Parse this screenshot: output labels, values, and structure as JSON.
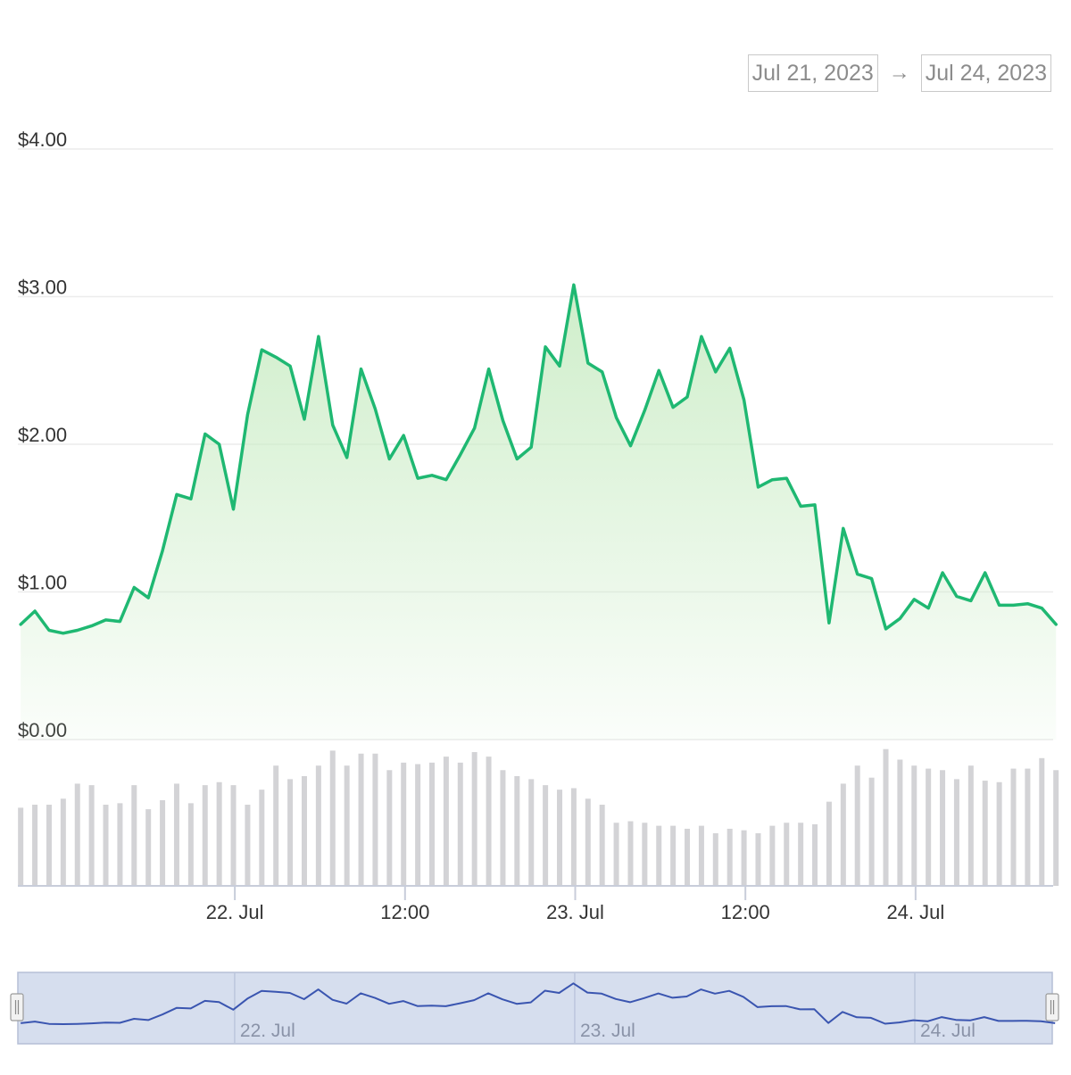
{
  "date_range": {
    "from": "Jul 21, 2023",
    "arrow": "→",
    "to": "Jul 24, 2023"
  },
  "colors": {
    "line": "#1fb872",
    "area_top": "#c9ecc4",
    "volume": "#d3d3d6",
    "grid": "#ececec",
    "navigator_fill": "#d6deee",
    "navigator_line": "#3a55b0"
  },
  "chart_data": {
    "type": "line",
    "title": "",
    "xlabel": "",
    "ylabel": "",
    "ylim": [
      0,
      4
    ],
    "y_ticks": [
      "$0.00",
      "$1.00",
      "$2.00",
      "$3.00",
      "$4.00"
    ],
    "x_ticks": [
      {
        "label": "22. Jul",
        "hours": 24
      },
      {
        "label": "12:00",
        "hours": 36
      },
      {
        "label": "23. Jul",
        "hours": 48
      },
      {
        "label": "12:00",
        "hours": 60
      },
      {
        "label": "24. Jul",
        "hours": 72
      }
    ],
    "x_range_hours": [
      8.7,
      81.7
    ],
    "x_unit": "hours after Jul 21, 2023 00:00",
    "series": [
      {
        "type": "line",
        "x": [
          8.9,
          9.9,
          10.9,
          11.9,
          12.9,
          13.9,
          14.9,
          15.9,
          16.9,
          17.9,
          18.9,
          19.9,
          20.9,
          21.9,
          22.9,
          23.9,
          24.9,
          25.9,
          26.9,
          27.9,
          28.9,
          29.9,
          30.9,
          31.9,
          32.9,
          33.9,
          34.9,
          35.9,
          36.9,
          37.9,
          38.9,
          39.9,
          40.9,
          41.9,
          42.9,
          43.9,
          44.9,
          45.9,
          46.9,
          47.9,
          48.9,
          49.9,
          50.9,
          51.9,
          52.9,
          53.9,
          54.9,
          55.9,
          56.9,
          57.9,
          58.9,
          59.9,
          60.9,
          61.9,
          62.9,
          63.9,
          64.9,
          65.9,
          66.9,
          67.9,
          68.9,
          69.9,
          70.9,
          71.9,
          72.9,
          73.9,
          74.9,
          75.9,
          76.9,
          77.9,
          78.9,
          79.9,
          80.9,
          81.9
        ],
        "values": [
          0.78,
          0.87,
          0.74,
          0.72,
          0.74,
          0.77,
          0.81,
          0.8,
          1.03,
          0.96,
          1.28,
          1.66,
          1.63,
          2.07,
          2.0,
          1.56,
          2.2,
          2.64,
          2.59,
          2.53,
          2.17,
          2.73,
          2.13,
          1.91,
          2.51,
          2.24,
          1.9,
          2.06,
          1.77,
          1.79,
          1.76,
          1.93,
          2.11,
          2.51,
          2.16,
          1.9,
          1.98,
          2.66,
          2.53,
          3.08,
          2.55,
          2.49,
          2.18,
          1.99,
          2.23,
          2.5,
          2.25,
          2.32,
          2.73,
          2.49,
          2.65,
          2.3,
          1.71,
          1.76,
          1.77,
          1.58,
          1.59,
          0.79,
          1.43,
          1.12,
          1.09,
          0.75,
          0.82,
          0.95,
          0.89,
          1.13,
          0.97,
          0.94,
          1.13,
          0.91,
          0.91,
          0.92,
          0.89,
          0.78
        ]
      },
      {
        "type": "column",
        "x": [
          8.9,
          9.9,
          10.9,
          11.9,
          12.9,
          13.9,
          14.9,
          15.9,
          16.9,
          17.9,
          18.9,
          19.9,
          20.9,
          21.9,
          22.9,
          23.9,
          24.9,
          25.9,
          26.9,
          27.9,
          28.9,
          29.9,
          30.9,
          31.9,
          32.9,
          33.9,
          34.9,
          35.9,
          36.9,
          37.9,
          38.9,
          39.9,
          40.9,
          41.9,
          42.9,
          43.9,
          44.9,
          45.9,
          46.9,
          47.9,
          48.9,
          49.9,
          50.9,
          51.9,
          52.9,
          53.9,
          54.9,
          55.9,
          56.9,
          57.9,
          58.9,
          59.9,
          60.9,
          61.9,
          62.9,
          63.9,
          64.9,
          65.9,
          66.9,
          67.9,
          68.9,
          69.9,
          70.9,
          71.9,
          72.9,
          73.9,
          74.9,
          75.9,
          76.9,
          77.9,
          78.9,
          79.9,
          80.9,
          81.9
        ],
        "values": [
          52,
          54,
          54,
          58,
          68,
          67,
          54,
          55,
          67,
          51,
          57,
          68,
          55,
          67,
          69,
          67,
          54,
          64,
          80,
          71,
          73,
          80,
          90,
          80,
          88,
          88,
          77,
          82,
          81,
          82,
          86,
          82,
          89,
          86,
          77,
          73,
          71,
          67,
          64,
          65,
          58,
          54,
          42,
          43,
          42,
          40,
          40,
          38,
          40,
          35,
          38,
          37,
          35,
          40,
          42,
          42,
          41,
          56,
          68,
          80,
          72,
          91,
          84,
          80,
          78,
          77,
          71,
          80,
          70,
          69,
          78,
          78,
          85,
          77
        ]
      }
    ],
    "navigator": {
      "x_ticks": [
        "22. Jul",
        "23. Jul",
        "24. Jul"
      ]
    }
  }
}
